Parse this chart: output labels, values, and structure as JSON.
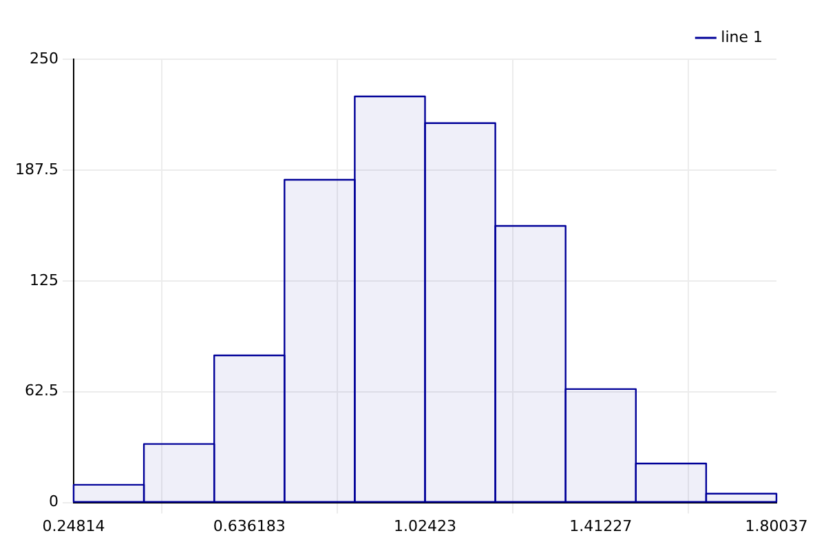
{
  "chart_data": {
    "type": "histogram",
    "bins": [
      0.24814,
      0.403363,
      0.558586,
      0.713809,
      0.869032,
      1.024255,
      1.179478,
      1.334701,
      1.489924,
      1.645147,
      1.80037
    ],
    "series": [
      {
        "name": "line 1",
        "color": "#000099",
        "values": [
          10,
          33,
          83,
          182,
          229,
          214,
          156,
          64,
          22,
          5
        ]
      }
    ],
    "xlim": [
      0.24814,
      1.80037
    ],
    "xticks": [
      0.24814,
      0.636183,
      1.02423,
      1.41227,
      1.80037
    ],
    "ylim": [
      0,
      250
    ],
    "yticks": [
      0,
      62.5,
      125,
      187.5,
      250
    ],
    "grid": true,
    "legend": "top right"
  }
}
